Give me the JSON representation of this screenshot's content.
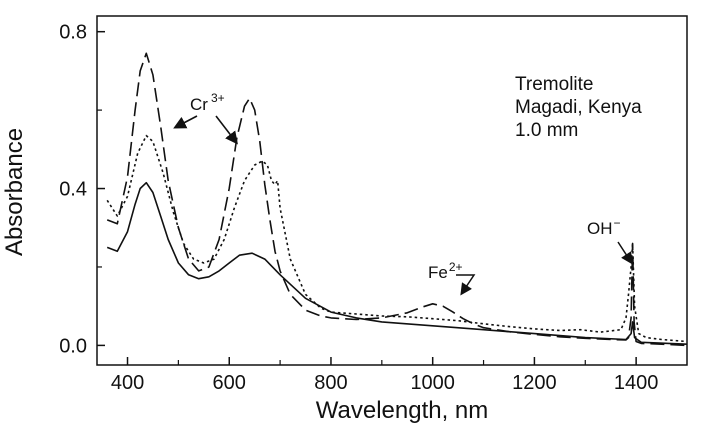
{
  "chart_data": {
    "type": "line",
    "xlabel": "Wavelength, nm",
    "ylabel": "Absorbance",
    "xlim": [
      340,
      1500
    ],
    "ylim": [
      -0.05,
      0.84
    ],
    "x_ticks": [
      400,
      600,
      800,
      1000,
      1200,
      1400
    ],
    "y_ticks": [
      0.0,
      0.4,
      0.8
    ],
    "x_tick_labels": [
      "400",
      "600",
      "800",
      "1000",
      "1200",
      "1400"
    ],
    "y_tick_labels": [
      "0.0",
      "0.4",
      "0.8"
    ],
    "grid": false,
    "legend": "none",
    "annotation_lines": [
      "Tremolite",
      "Magadi, Kenya",
      "1.0 mm"
    ],
    "labels": {
      "cr_base": "Cr",
      "cr_sup": "3+",
      "fe_base": "Fe",
      "fe_sup": "2+",
      "oh_base": "OH",
      "oh_sup": "−"
    },
    "series": [
      {
        "style": "dashed",
        "x": [
          360,
          380,
          400,
          415,
          425,
          437,
          450,
          465,
          480,
          500,
          520,
          540,
          560,
          580,
          600,
          615,
          630,
          640,
          650,
          660,
          670,
          680,
          690,
          700,
          720,
          750,
          780,
          800,
          850,
          900,
          950,
          980,
          1000,
          1020,
          1040,
          1060,
          1080,
          1100,
          1150,
          1200,
          1250,
          1300,
          1350,
          1380,
          1385,
          1390,
          1393,
          1396,
          1400,
          1410,
          1450,
          1500
        ],
        "y": [
          0.32,
          0.31,
          0.43,
          0.6,
          0.7,
          0.745,
          0.69,
          0.56,
          0.42,
          0.3,
          0.22,
          0.19,
          0.2,
          0.27,
          0.4,
          0.53,
          0.61,
          0.63,
          0.6,
          0.52,
          0.41,
          0.32,
          0.24,
          0.19,
          0.13,
          0.09,
          0.075,
          0.07,
          0.066,
          0.07,
          0.083,
          0.098,
          0.106,
          0.1,
          0.085,
          0.068,
          0.055,
          0.045,
          0.035,
          0.028,
          0.022,
          0.018,
          0.015,
          0.014,
          0.02,
          0.07,
          0.26,
          0.06,
          0.01,
          0.005,
          0.003,
          0.0
        ]
      },
      {
        "style": "dotted",
        "x": [
          360,
          380,
          400,
          420,
          437,
          450,
          470,
          490,
          510,
          530,
          550,
          570,
          590,
          610,
          630,
          650,
          665,
          675,
          683,
          690,
          695,
          700,
          720,
          750,
          780,
          800,
          850,
          900,
          950,
          1000,
          1050,
          1100,
          1150,
          1200,
          1250,
          1290,
          1330,
          1370,
          1380,
          1385,
          1390,
          1393,
          1397,
          1405,
          1420,
          1450,
          1500
        ],
        "y": [
          0.37,
          0.33,
          0.38,
          0.49,
          0.535,
          0.52,
          0.44,
          0.34,
          0.26,
          0.22,
          0.21,
          0.22,
          0.27,
          0.35,
          0.42,
          0.46,
          0.47,
          0.46,
          0.42,
          0.41,
          0.42,
          0.35,
          0.22,
          0.13,
          0.095,
          0.085,
          0.08,
          0.075,
          0.073,
          0.068,
          0.063,
          0.055,
          0.048,
          0.042,
          0.038,
          0.04,
          0.034,
          0.04,
          0.07,
          0.13,
          0.2,
          0.26,
          0.1,
          0.03,
          0.02,
          0.015,
          0.01
        ]
      },
      {
        "style": "solid",
        "x": [
          360,
          380,
          400,
          415,
          425,
          437,
          450,
          465,
          480,
          500,
          520,
          540,
          560,
          580,
          600,
          620,
          645,
          670,
          700,
          750,
          800,
          850,
          900,
          1000,
          1100,
          1200,
          1300,
          1380,
          1390,
          1393,
          1397,
          1410,
          1500
        ],
        "y": [
          0.25,
          0.24,
          0.29,
          0.36,
          0.4,
          0.415,
          0.39,
          0.33,
          0.27,
          0.21,
          0.18,
          0.17,
          0.175,
          0.19,
          0.21,
          0.23,
          0.235,
          0.22,
          0.18,
          0.12,
          0.085,
          0.07,
          0.06,
          0.05,
          0.04,
          0.03,
          0.02,
          0.015,
          0.03,
          0.06,
          0.02,
          0.008,
          0.003
        ]
      }
    ]
  }
}
